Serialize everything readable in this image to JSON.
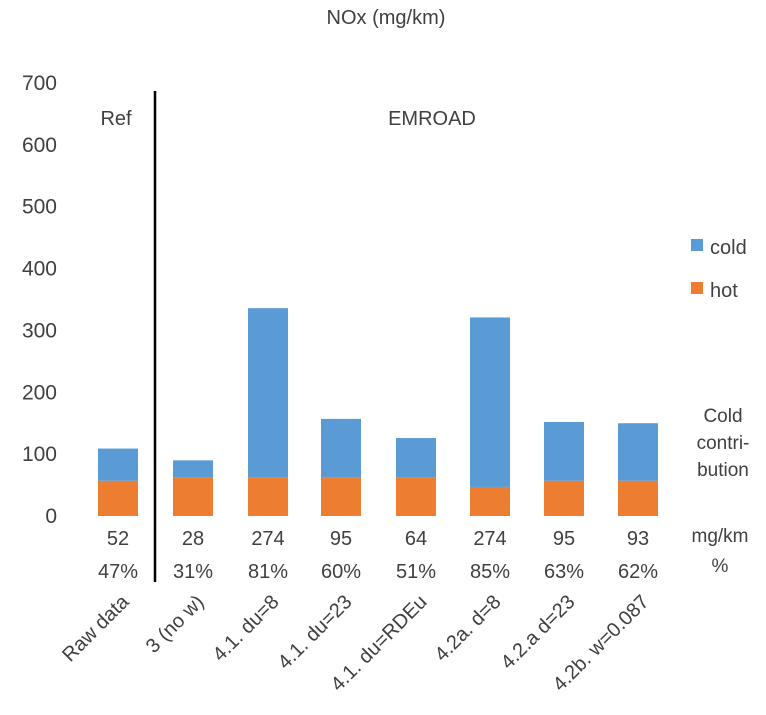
{
  "chart_data": {
    "type": "bar",
    "stacked": true,
    "title": "NOx (mg/km)",
    "ylim": [
      0,
      700
    ],
    "yticks": [
      0,
      100,
      200,
      300,
      400,
      500,
      600,
      700
    ],
    "grid": false,
    "legend_position": "right",
    "categories": [
      "Raw data",
      "3 (no w)",
      "4.1. du=8",
      "4.1. du=23",
      "4.1. du=RDEu",
      "4.2a. d=8",
      "4.2.a d=23",
      "4.2b. w=0.087"
    ],
    "series": [
      {
        "name": "hot",
        "color": "#ED7D31",
        "values": [
          57,
          62,
          62,
          62,
          62,
          47,
          57,
          57
        ]
      },
      {
        "name": "cold",
        "color": "#5B9BD5",
        "values": [
          52,
          28,
          274,
          95,
          64,
          274,
          95,
          93
        ]
      }
    ],
    "cold_mgkm": [
      "52",
      "28",
      "274",
      "95",
      "64",
      "274",
      "95",
      "93"
    ],
    "cold_pct": [
      "47%",
      "31%",
      "81%",
      "60%",
      "51%",
      "85%",
      "63%",
      "62%"
    ],
    "annotations": {
      "ref": "Ref",
      "emroad": "EMROAD",
      "cold_contribution": [
        "Cold",
        "contri-",
        "bution"
      ],
      "unit_mgkm": "mg/km",
      "unit_pct": "%"
    }
  }
}
